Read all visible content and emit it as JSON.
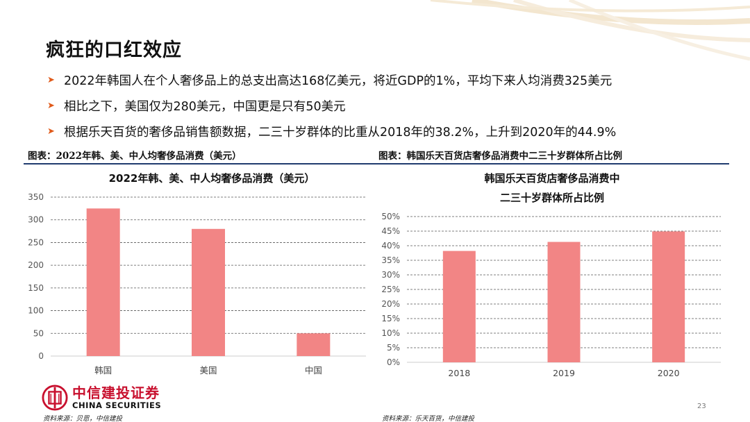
{
  "slide": {
    "title": "疯狂的口红效应",
    "bullets": [
      "2022年韩国人在个人奢侈品上的总支出高达168亿美元，将近GDP的1%，平均下来人均消费325美元",
      "相比之下，美国仅为280美元，中国更是只有50美元",
      "根据乐天百货的奢侈品销售额数据，二三十岁群体的比重从2018年的38.2%，上升到2020年的44.9%"
    ],
    "accent_color": "#e05a1a",
    "rule_color": "#1f3b6e",
    "page_number": "23"
  },
  "captions": {
    "left": "图表：2022年韩、美、中人均奢侈品消费（美元）",
    "right": "图表：韩国乐天百货店奢侈品消费中二三十岁群体所占比例"
  },
  "sources": {
    "left": "资料来源：贝恩，中信建投",
    "right": "资料来源：乐天百货，中信建投"
  },
  "logo": {
    "cn": "中信建投证券",
    "en": "CHINA SECURITIES",
    "color": "#c8102e"
  },
  "chart_data": [
    {
      "type": "bar",
      "title": "2022年韩、美、中人均奢侈品消费（美元）",
      "categories": [
        "韩国",
        "美国",
        "中国"
      ],
      "values": [
        325,
        280,
        50
      ],
      "ylim": [
        0,
        350
      ],
      "yticks": [
        0,
        50,
        100,
        150,
        200,
        250,
        300,
        350
      ],
      "ytick_labels": [
        "0",
        "50",
        "100",
        "150",
        "200",
        "250",
        "300",
        "350"
      ],
      "grid": true,
      "color": "#f28585"
    },
    {
      "type": "bar",
      "title_lines": [
        "韩国乐天百货店奢侈品消费中",
        "二三十岁群体所占比例"
      ],
      "categories": [
        "2018",
        "2019",
        "2020"
      ],
      "values": [
        38.2,
        41.3,
        44.9
      ],
      "ylim": [
        0,
        50
      ],
      "yticks": [
        0,
        5,
        10,
        15,
        20,
        25,
        30,
        35,
        40,
        45,
        50
      ],
      "ytick_labels": [
        "0%",
        "5%",
        "10%",
        "15%",
        "20%",
        "25%",
        "30%",
        "35%",
        "40%",
        "45%",
        "50%"
      ],
      "grid": true,
      "color": "#f28585"
    }
  ]
}
